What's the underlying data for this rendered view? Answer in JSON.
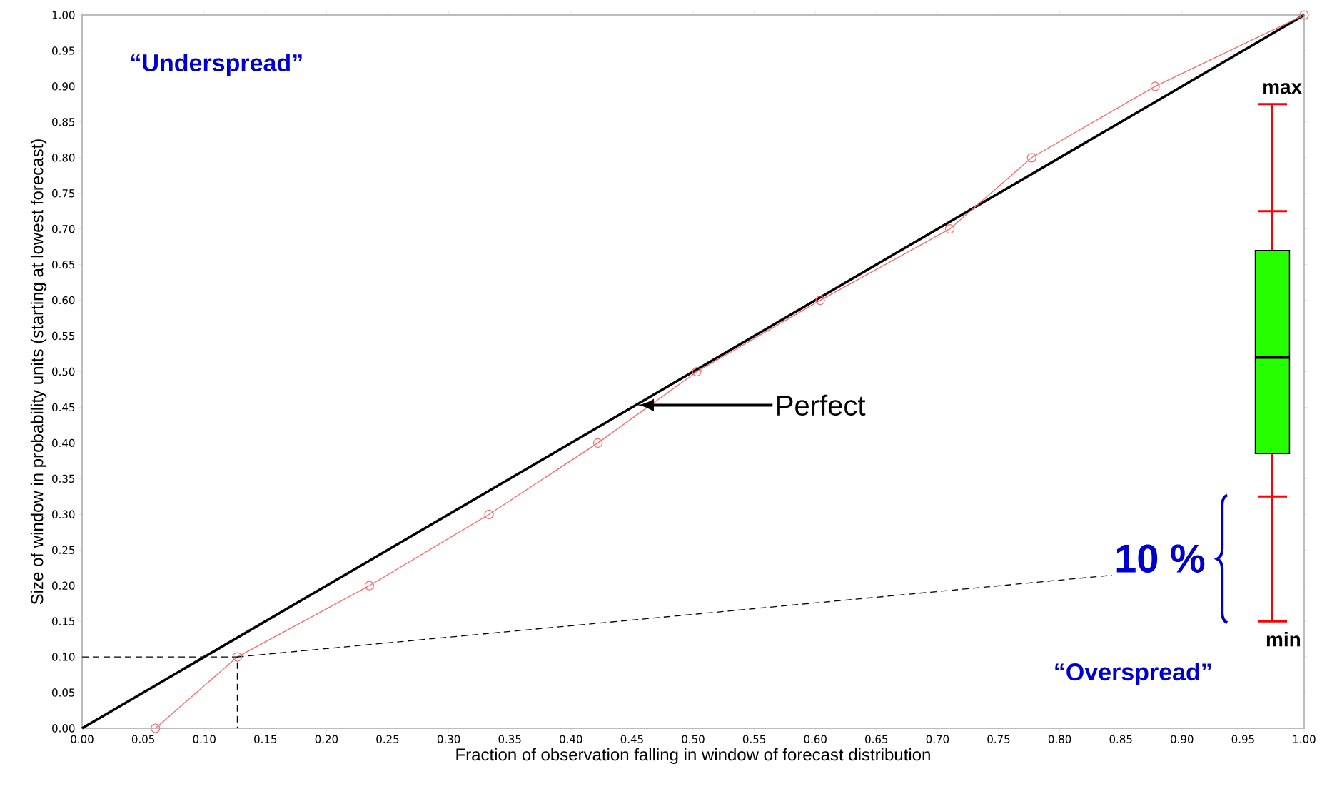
{
  "chart_data": {
    "type": "line",
    "xlabel": "Fraction of observation falling in window of forecast distribution",
    "ylabel": "Size of window in probability units (starting at lowest forecast)",
    "xlim": [
      0,
      1
    ],
    "ylim": [
      0,
      1
    ],
    "xticks": [
      {
        "value": 0,
        "label": "0.00"
      },
      {
        "value": 0.05,
        "label": "0.05"
      },
      {
        "value": 0.1,
        "label": "0.10"
      },
      {
        "value": 0.15,
        "label": "0.15"
      },
      {
        "value": 0.2,
        "label": "0.20"
      },
      {
        "value": 0.25,
        "label": "0.25"
      },
      {
        "value": 0.3,
        "label": "0.30"
      },
      {
        "value": 0.35,
        "label": "0.35"
      },
      {
        "value": 0.4,
        "label": "0.40"
      },
      {
        "value": 0.45,
        "label": "0.45"
      },
      {
        "value": 0.5,
        "label": "0.50"
      },
      {
        "value": 0.55,
        "label": "0.55"
      },
      {
        "value": 0.6,
        "label": "0.60"
      },
      {
        "value": 0.65,
        "label": "0.65"
      },
      {
        "value": 0.7,
        "label": "0.70"
      },
      {
        "value": 0.75,
        "label": "0.75"
      },
      {
        "value": 0.8,
        "label": "0.80"
      },
      {
        "value": 0.85,
        "label": "0.85"
      },
      {
        "value": 0.9,
        "label": "0.90"
      },
      {
        "value": 0.95,
        "label": "0.95"
      },
      {
        "value": 1,
        "label": "1.00"
      }
    ],
    "yticks": [
      {
        "value": 0,
        "label": "0.00"
      },
      {
        "value": 0.05,
        "label": "0.05"
      },
      {
        "value": 0.1,
        "label": "0.10"
      },
      {
        "value": 0.15,
        "label": "0.15"
      },
      {
        "value": 0.2,
        "label": "0.20"
      },
      {
        "value": 0.25,
        "label": "0.25"
      },
      {
        "value": 0.3,
        "label": "0.30"
      },
      {
        "value": 0.35,
        "label": "0.35"
      },
      {
        "value": 0.4,
        "label": "0.40"
      },
      {
        "value": 0.45,
        "label": "0.45"
      },
      {
        "value": 0.5,
        "label": "0.50"
      },
      {
        "value": 0.55,
        "label": "0.55"
      },
      {
        "value": 0.6,
        "label": "0.60"
      },
      {
        "value": 0.65,
        "label": "0.65"
      },
      {
        "value": 0.7,
        "label": "0.70"
      },
      {
        "value": 0.75,
        "label": "0.75"
      },
      {
        "value": 0.8,
        "label": "0.80"
      },
      {
        "value": 0.85,
        "label": "0.85"
      },
      {
        "value": 0.9,
        "label": "0.90"
      },
      {
        "value": 0.95,
        "label": "0.95"
      },
      {
        "value": 1,
        "label": "1.00"
      }
    ],
    "series": [
      {
        "name": "Perfect",
        "color": "#000000",
        "x": [
          0,
          1
        ],
        "values": [
          0,
          1
        ],
        "marker": "none"
      },
      {
        "color": "#ff6666",
        "x": [
          0.06,
          0.127,
          0.235,
          0.333,
          0.422,
          0.503,
          0.604,
          0.71,
          0.777,
          0.878,
          1.0
        ],
        "values": [
          0,
          0.1,
          0.2,
          0.3,
          0.4,
          0.5,
          0.6,
          0.7,
          0.8,
          0.9,
          1.0
        ],
        "marker": "circle"
      },
      {
        "color": "#000000",
        "x": [
          0,
          0.127,
          0.127
        ],
        "values": [
          0.1,
          0.1,
          0
        ],
        "marker": "none",
        "line_style": "dashed"
      }
    ],
    "annotations": [
      "“Underspread”",
      "“Overspread”",
      {
        "text": "10 %",
        "x": 0.127,
        "y": 0.1
      },
      "max",
      "min"
    ]
  }
}
